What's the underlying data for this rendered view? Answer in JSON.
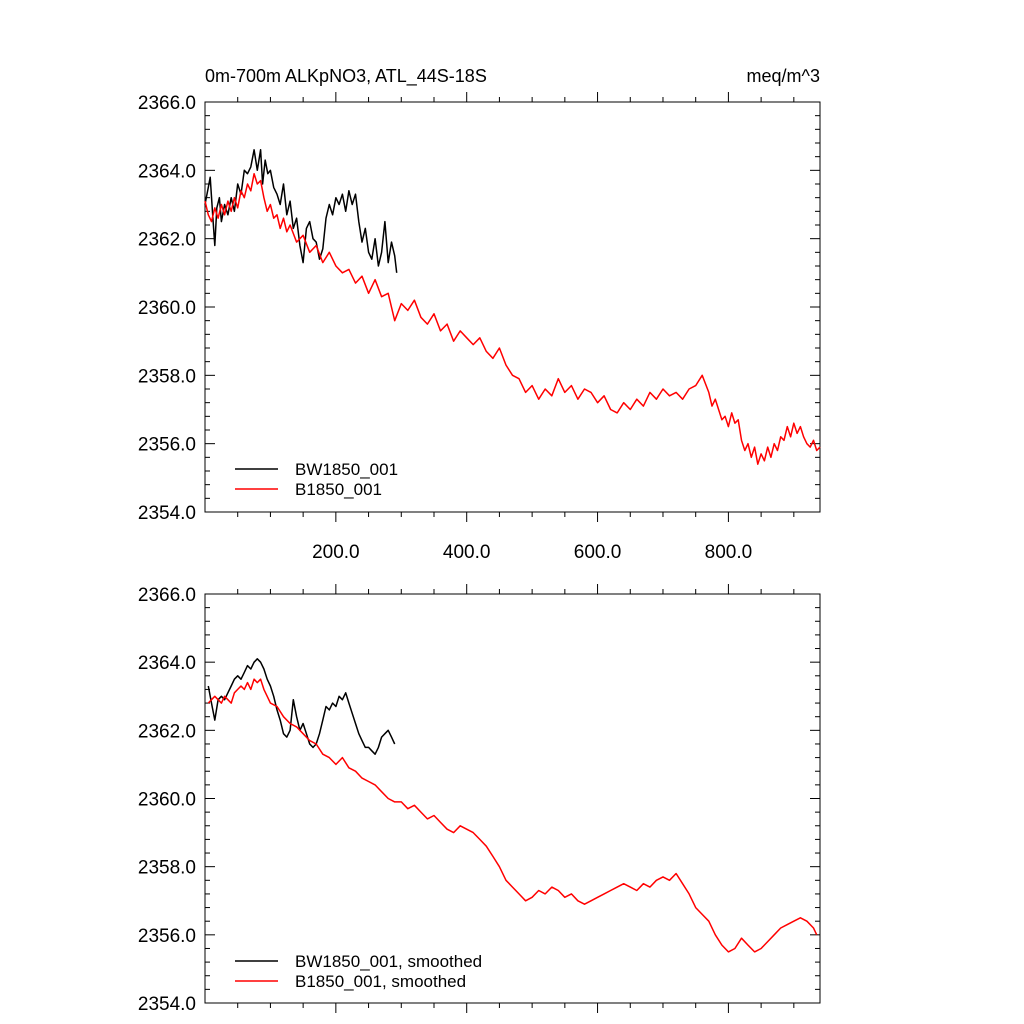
{
  "title_left": "0m-700m ALKpNO3, ATL_44S-18S",
  "title_right": "meq/m^3",
  "colors": {
    "bw": "#000000",
    "b": "#ff0000",
    "frame": "#000000"
  },
  "chart_data": [
    {
      "type": "line",
      "panel": "top",
      "xlim": [
        0,
        940
      ],
      "ylim": [
        2354,
        2366
      ],
      "yticks": [
        "2366.0",
        "2364.0",
        "2362.0",
        "2360.0",
        "2358.0",
        "2356.0",
        "2354.0"
      ],
      "ytick_values": [
        2366,
        2364,
        2362,
        2360,
        2358,
        2356,
        2354
      ],
      "xticks": [
        "200.0",
        "400.0",
        "600.0",
        "800.0"
      ],
      "xtick_values": [
        200,
        400,
        600,
        800
      ],
      "legend": [
        "BW1850_001",
        "B1850_001"
      ],
      "legend_position": "bottom-left",
      "series": [
        {
          "name": "BW1850_001",
          "color": "#000000",
          "x": [
            0,
            5,
            8,
            12,
            15,
            18,
            22,
            25,
            30,
            35,
            40,
            45,
            50,
            55,
            60,
            65,
            70,
            75,
            80,
            85,
            88,
            92,
            96,
            100,
            105,
            110,
            115,
            120,
            125,
            130,
            135,
            140,
            145,
            150,
            155,
            160,
            165,
            170,
            175,
            180,
            185,
            190,
            195,
            200,
            205,
            210,
            215,
            220,
            225,
            230,
            235,
            240,
            245,
            250,
            255,
            260,
            265,
            270,
            275,
            280,
            285,
            290,
            293
          ],
          "y": [
            2363.0,
            2363.5,
            2363.8,
            2362.6,
            2361.8,
            2362.9,
            2363.2,
            2362.5,
            2363.0,
            2362.7,
            2363.2,
            2362.8,
            2363.6,
            2363.3,
            2364.0,
            2363.9,
            2364.1,
            2364.6,
            2364.0,
            2364.6,
            2363.6,
            2364.3,
            2363.9,
            2364.0,
            2363.5,
            2363.3,
            2363.0,
            2363.6,
            2362.7,
            2363.1,
            2362.3,
            2362.6,
            2361.8,
            2361.3,
            2362.3,
            2362.5,
            2362.0,
            2361.9,
            2361.4,
            2361.7,
            2362.6,
            2363.0,
            2362.7,
            2363.2,
            2363.0,
            2363.3,
            2362.8,
            2363.4,
            2363.0,
            2363.3,
            2362.5,
            2361.9,
            2362.3,
            2361.6,
            2361.4,
            2362.0,
            2361.2,
            2361.6,
            2362.5,
            2361.3,
            2361.9,
            2361.5,
            2361.0
          ]
        },
        {
          "name": "B1850_001",
          "color": "#ff0000",
          "x": [
            0,
            5,
            10,
            15,
            20,
            25,
            30,
            35,
            40,
            45,
            50,
            55,
            60,
            65,
            70,
            75,
            80,
            85,
            90,
            95,
            100,
            105,
            110,
            115,
            120,
            125,
            130,
            140,
            150,
            160,
            170,
            180,
            190,
            200,
            210,
            220,
            230,
            240,
            250,
            260,
            270,
            280,
            290,
            300,
            310,
            320,
            330,
            340,
            350,
            360,
            370,
            380,
            390,
            400,
            410,
            420,
            430,
            440,
            450,
            460,
            470,
            480,
            490,
            500,
            510,
            520,
            530,
            540,
            550,
            560,
            570,
            580,
            590,
            600,
            610,
            620,
            630,
            640,
            650,
            660,
            670,
            680,
            690,
            700,
            710,
            720,
            730,
            740,
            750,
            760,
            770,
            775,
            780,
            785,
            790,
            795,
            800,
            805,
            810,
            815,
            820,
            825,
            830,
            835,
            840,
            845,
            850,
            855,
            860,
            865,
            870,
            875,
            880,
            885,
            890,
            895,
            900,
            905,
            910,
            915,
            920,
            925,
            930,
            935,
            940
          ],
          "y": [
            2363.1,
            2362.7,
            2362.5,
            2362.9,
            2362.6,
            2363.0,
            2362.7,
            2363.1,
            2362.8,
            2363.2,
            2362.9,
            2363.4,
            2363.2,
            2363.6,
            2363.4,
            2363.9,
            2363.6,
            2363.7,
            2363.2,
            2362.8,
            2363.0,
            2362.6,
            2362.7,
            2362.3,
            2362.6,
            2362.2,
            2362.4,
            2361.9,
            2362.1,
            2361.6,
            2361.8,
            2361.3,
            2361.6,
            2361.2,
            2361.0,
            2361.1,
            2360.7,
            2360.9,
            2360.4,
            2360.8,
            2360.3,
            2360.4,
            2359.6,
            2360.1,
            2359.9,
            2360.2,
            2359.7,
            2359.5,
            2359.8,
            2359.3,
            2359.5,
            2359.0,
            2359.3,
            2359.1,
            2358.9,
            2359.1,
            2358.7,
            2358.5,
            2358.8,
            2358.3,
            2358.0,
            2357.9,
            2357.5,
            2357.7,
            2357.3,
            2357.6,
            2357.4,
            2357.9,
            2357.5,
            2357.7,
            2357.3,
            2357.6,
            2357.5,
            2357.2,
            2357.4,
            2357.0,
            2356.9,
            2357.2,
            2357.0,
            2357.3,
            2357.1,
            2357.5,
            2357.3,
            2357.6,
            2357.4,
            2357.5,
            2357.3,
            2357.6,
            2357.7,
            2358.0,
            2357.5,
            2357.1,
            2357.3,
            2357.0,
            2356.7,
            2356.8,
            2356.5,
            2356.9,
            2356.6,
            2356.7,
            2356.1,
            2355.8,
            2356.0,
            2355.6,
            2355.9,
            2355.4,
            2355.7,
            2355.5,
            2355.9,
            2355.6,
            2356.0,
            2355.8,
            2356.2,
            2356.1,
            2356.5,
            2356.2,
            2356.6,
            2356.3,
            2356.5,
            2356.2,
            2356.0,
            2355.9,
            2356.1,
            2355.8,
            2355.9
          ]
        }
      ]
    },
    {
      "type": "line",
      "panel": "bottom",
      "xlim": [
        0,
        940
      ],
      "ylim": [
        2354,
        2366
      ],
      "yticks": [
        "2366.0",
        "2364.0",
        "2362.0",
        "2360.0",
        "2358.0",
        "2356.0",
        "2354.0"
      ],
      "ytick_values": [
        2366,
        2364,
        2362,
        2360,
        2358,
        2356,
        2354
      ],
      "xticks": [],
      "xtick_values": [
        200,
        400,
        600,
        800
      ],
      "legend": [
        "BW1850_001, smoothed",
        "B1850_001, smoothed"
      ],
      "legend_position": "bottom-left",
      "series": [
        {
          "name": "BW1850_001, smoothed",
          "color": "#000000",
          "x": [
            5,
            10,
            15,
            20,
            25,
            30,
            35,
            40,
            45,
            50,
            55,
            60,
            65,
            70,
            75,
            80,
            85,
            90,
            95,
            100,
            105,
            110,
            115,
            120,
            125,
            130,
            135,
            140,
            145,
            150,
            155,
            160,
            165,
            170,
            175,
            180,
            185,
            190,
            195,
            200,
            205,
            210,
            215,
            220,
            225,
            230,
            235,
            240,
            245,
            250,
            255,
            260,
            265,
            270,
            275,
            280,
            285,
            290
          ],
          "y": [
            2363.3,
            2362.8,
            2362.3,
            2362.9,
            2363.0,
            2362.9,
            2363.1,
            2363.3,
            2363.5,
            2363.6,
            2363.5,
            2363.7,
            2363.9,
            2363.8,
            2364.0,
            2364.1,
            2364.0,
            2363.8,
            2363.5,
            2363.3,
            2363.0,
            2362.6,
            2362.3,
            2361.9,
            2361.8,
            2362.0,
            2362.9,
            2362.4,
            2362.0,
            2362.2,
            2361.9,
            2361.6,
            2361.5,
            2361.6,
            2361.9,
            2362.3,
            2362.7,
            2362.6,
            2362.8,
            2362.7,
            2363.0,
            2362.9,
            2363.1,
            2362.8,
            2362.5,
            2362.2,
            2361.9,
            2361.7,
            2361.5,
            2361.5,
            2361.4,
            2361.3,
            2361.5,
            2361.8,
            2361.9,
            2362.0,
            2361.8,
            2361.6
          ]
        },
        {
          "name": "B1850_001, smoothed",
          "color": "#ff0000",
          "x": [
            5,
            10,
            15,
            20,
            25,
            30,
            35,
            40,
            45,
            50,
            55,
            60,
            65,
            70,
            75,
            80,
            85,
            90,
            95,
            100,
            110,
            120,
            130,
            140,
            150,
            160,
            170,
            180,
            190,
            200,
            210,
            220,
            230,
            240,
            250,
            260,
            270,
            280,
            290,
            300,
            310,
            320,
            330,
            340,
            350,
            360,
            370,
            380,
            390,
            400,
            410,
            420,
            430,
            440,
            450,
            460,
            470,
            480,
            490,
            500,
            510,
            520,
            530,
            540,
            550,
            560,
            570,
            580,
            590,
            600,
            610,
            620,
            630,
            640,
            650,
            660,
            670,
            680,
            690,
            700,
            710,
            720,
            730,
            740,
            750,
            760,
            770,
            780,
            790,
            800,
            810,
            820,
            830,
            840,
            850,
            860,
            870,
            880,
            890,
            900,
            910,
            920,
            930,
            935
          ],
          "y": [
            2362.8,
            2362.9,
            2363.0,
            2362.9,
            2362.8,
            2363.0,
            2362.9,
            2362.8,
            2363.1,
            2363.2,
            2363.3,
            2363.2,
            2363.4,
            2363.2,
            2363.5,
            2363.4,
            2363.5,
            2363.2,
            2363.0,
            2362.8,
            2362.7,
            2362.4,
            2362.2,
            2362.1,
            2361.9,
            2361.7,
            2361.6,
            2361.3,
            2361.2,
            2361.0,
            2361.2,
            2360.9,
            2360.8,
            2360.6,
            2360.5,
            2360.4,
            2360.2,
            2360.0,
            2359.9,
            2359.9,
            2359.7,
            2359.8,
            2359.6,
            2359.4,
            2359.5,
            2359.3,
            2359.1,
            2359.0,
            2359.2,
            2359.1,
            2359.0,
            2358.8,
            2358.6,
            2358.3,
            2358.0,
            2357.6,
            2357.4,
            2357.2,
            2357.0,
            2357.1,
            2357.3,
            2357.2,
            2357.4,
            2357.3,
            2357.1,
            2357.2,
            2357.0,
            2356.9,
            2357.0,
            2357.1,
            2357.2,
            2357.3,
            2357.4,
            2357.5,
            2357.4,
            2357.3,
            2357.5,
            2357.4,
            2357.6,
            2357.7,
            2357.6,
            2357.8,
            2357.5,
            2357.2,
            2356.8,
            2356.6,
            2356.4,
            2356.0,
            2355.7,
            2355.5,
            2355.6,
            2355.9,
            2355.7,
            2355.5,
            2355.6,
            2355.8,
            2356.0,
            2356.2,
            2356.3,
            2356.4,
            2356.5,
            2356.4,
            2356.2,
            2356.0
          ]
        }
      ]
    }
  ]
}
